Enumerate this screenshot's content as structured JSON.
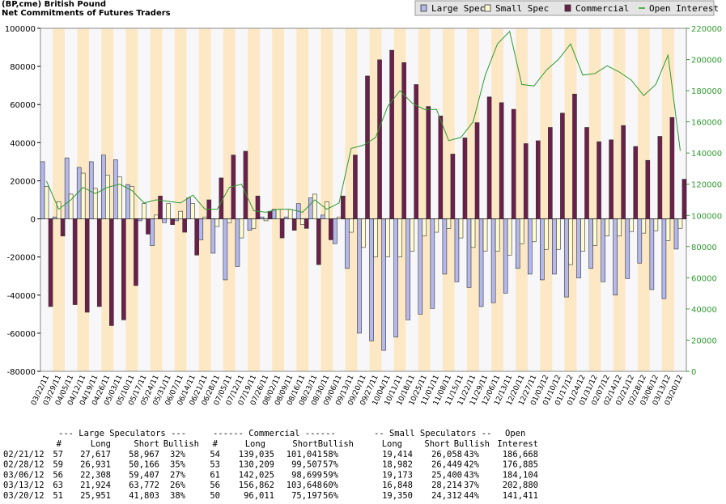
{
  "chart_data": {
    "type": "bar",
    "title": "(BP,cme) British Pound",
    "subtitle": "Net Commitments of Futures Traders",
    "legend": "top-right",
    "categories": [
      "03/22/11",
      "03/29/11",
      "04/05/11",
      "04/12/11",
      "04/19/11",
      "04/26/11",
      "05/03/11",
      "05/10/11",
      "05/17/11",
      "05/24/11",
      "05/31/11",
      "06/07/11",
      "06/14/11",
      "06/21/11",
      "06/28/11",
      "07/05/11",
      "07/12/11",
      "07/19/11",
      "07/26/11",
      "08/02/11",
      "08/09/11",
      "08/16/11",
      "08/23/11",
      "08/30/11",
      "09/06/11",
      "09/13/11",
      "09/20/11",
      "09/27/11",
      "10/04/11",
      "10/11/11",
      "10/18/11",
      "10/25/11",
      "11/01/11",
      "11/08/11",
      "11/15/11",
      "11/22/11",
      "11/29/11",
      "12/06/11",
      "12/13/11",
      "12/20/11",
      "12/27/11",
      "01/03/12",
      "01/10/12",
      "01/17/12",
      "01/24/12",
      "01/31/12",
      "02/07/12",
      "02/14/12",
      "02/21/12",
      "02/28/12",
      "03/06/12",
      "03/13/12",
      "03/20/12"
    ],
    "series": [
      {
        "name": "Large Spec",
        "color": "#b4b8ec",
        "values": [
          30000,
          1000,
          32000,
          27000,
          30000,
          33500,
          31000,
          18000,
          -1000,
          -14000,
          -2000,
          -1000,
          11000,
          -11000,
          -18000,
          -32000,
          -25000,
          -6000,
          1000,
          5000,
          1000,
          8000,
          11000,
          2000,
          -13000,
          -26000,
          -60000,
          -64000,
          -69000,
          -62000,
          -53000,
          -50000,
          -47000,
          -29000,
          -33000,
          -36000,
          -46000,
          -44000,
          -39000,
          -26000,
          -29000,
          -32000,
          -29000,
          -41000,
          -31000,
          -26000,
          -33000,
          -40000,
          -31350,
          -23235,
          -37099,
          -41848,
          -15852
        ]
      },
      {
        "name": "Small Spec",
        "color": "#fffbd0",
        "values": [
          17000,
          9000,
          13000,
          24000,
          16000,
          23000,
          22000,
          17000,
          8000,
          2000,
          8000,
          4000,
          8000,
          1000,
          -4000,
          -2000,
          -10000,
          -5000,
          -1000,
          5000,
          5000,
          -3000,
          13000,
          9000,
          1000,
          -7000,
          -15000,
          -20000,
          -20000,
          -20000,
          -17000,
          -9000,
          -7000,
          -5000,
          -10000,
          -15000,
          -17000,
          -17000,
          -19000,
          -13000,
          -12000,
          -16000,
          -16000,
          -24000,
          -17000,
          -14000,
          -9000,
          -9000,
          -6644,
          -7467,
          -6227,
          -11366,
          -4962
        ]
      },
      {
        "name": "Commercial",
        "color": "#6b1f4a",
        "values": [
          -46000,
          -9000,
          -45000,
          -49000,
          -46000,
          -56000,
          -53000,
          -35000,
          -8000,
          12000,
          -3000,
          -7000,
          -19000,
          10000,
          21500,
          33500,
          35500,
          12000,
          4000,
          -10000,
          -6000,
          -5000,
          -24000,
          -11000,
          12000,
          33500,
          75000,
          83500,
          88500,
          82000,
          70500,
          59000,
          54000,
          34000,
          42500,
          50500,
          64000,
          61000,
          57500,
          39500,
          41000,
          48000,
          55500,
          65500,
          48000,
          40500,
          41500,
          49000,
          37994,
          30702,
          43326,
          53214,
          20814
        ]
      },
      {
        "name": "Open Interest",
        "color": "#2e9a2e",
        "axis": "y2",
        "type": "line",
        "values": [
          122000,
          104000,
          110000,
          118000,
          114000,
          118000,
          120000,
          116000,
          108000,
          110000,
          109000,
          108000,
          113000,
          104000,
          104000,
          118000,
          120000,
          103000,
          102000,
          104000,
          104000,
          102000,
          110000,
          104000,
          108000,
          143000,
          145000,
          150000,
          170000,
          180000,
          172000,
          168000,
          168000,
          148000,
          150000,
          160000,
          190000,
          210000,
          218000,
          184000,
          183000,
          193000,
          200000,
          210000,
          190000,
          191000,
          196000,
          192000,
          186668,
          176885,
          184104,
          202880,
          141411
        ]
      }
    ],
    "ylim": [
      -80000,
      100000
    ],
    "yticks": [
      -80000,
      -60000,
      -40000,
      -20000,
      0,
      20000,
      40000,
      60000,
      80000,
      100000
    ],
    "y2lim": [
      0,
      220000
    ],
    "y2ticks": [
      0,
      20000,
      40000,
      60000,
      80000,
      100000,
      120000,
      140000,
      160000,
      180000,
      200000,
      220000
    ],
    "grid": false
  },
  "table": {
    "group_headers": [
      "--- Large Speculators ---",
      "------ Commercial ------",
      "-- Small Speculators --",
      "Open"
    ],
    "columns": [
      "#",
      "Long",
      "Short",
      "Bullish",
      "#",
      "Long",
      "Short",
      "Bullish",
      "Long",
      "Short",
      "Bullish",
      "Interest"
    ],
    "rows": [
      [
        "02/21/12",
        "57",
        "27,617",
        "58,967",
        "32%",
        "54",
        "139,035",
        "101,041",
        "58%",
        "19,414",
        "26,058",
        "43%",
        "186,668"
      ],
      [
        "02/28/12",
        "59",
        "26,931",
        "50,166",
        "35%",
        "53",
        "130,209",
        "99,507",
        "57%",
        "18,982",
        "26,449",
        "42%",
        "176,885"
      ],
      [
        "03/06/12",
        "56",
        "22,308",
        "59,407",
        "27%",
        "61",
        "142,025",
        "98,699",
        "59%",
        "19,173",
        "25,400",
        "43%",
        "184,104"
      ],
      [
        "03/13/12",
        "63",
        "21,924",
        "63,772",
        "26%",
        "56",
        "156,862",
        "103,648",
        "60%",
        "16,848",
        "28,214",
        "37%",
        "202,880"
      ],
      [
        "03/20/12",
        "51",
        "25,951",
        "41,803",
        "38%",
        "50",
        "96,011",
        "75,197",
        "56%",
        "19,350",
        "24,312",
        "44%",
        "141,411"
      ]
    ]
  }
}
